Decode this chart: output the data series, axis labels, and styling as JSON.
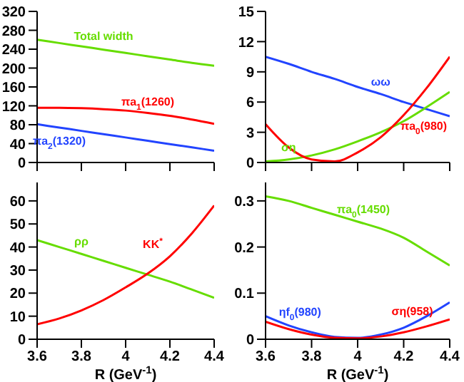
{
  "chart_data": [
    {
      "type": "line",
      "x": [
        3.6,
        3.7,
        3.8,
        3.9,
        4.0,
        4.1,
        4.2,
        4.3,
        4.4
      ],
      "xlim": [
        3.6,
        4.4
      ],
      "xticks": [
        3.6,
        3.8,
        4,
        4.2,
        4.4
      ],
      "ylim": [
        0,
        320
      ],
      "yticks": [
        0,
        40,
        80,
        120,
        160,
        200,
        240,
        280,
        320
      ],
      "tick_labels": "y",
      "grid": false,
      "legend": false,
      "series": [
        {
          "name": "Total width",
          "color": "#66dd00",
          "values": [
            260,
            253,
            246,
            239,
            232,
            225,
            218,
            211,
            205
          ]
        },
        {
          "name": "πa$_{1}$(1260)",
          "color": "#ff0000",
          "values": [
            116,
            116,
            115,
            113,
            110,
            105,
            99,
            91,
            82
          ]
        },
        {
          "name": "πa$_{2}$(1320)",
          "color": "#2244ff",
          "values": [
            81,
            74,
            67,
            60,
            53,
            46,
            39,
            32,
            25
          ]
        }
      ]
    },
    {
      "type": "line",
      "x": [
        3.6,
        3.7,
        3.8,
        3.9,
        4.0,
        4.1,
        4.2,
        4.3,
        4.4
      ],
      "xlim": [
        3.6,
        4.4
      ],
      "xticks": [
        3.6,
        3.8,
        4,
        4.2,
        4.4
      ],
      "ylim": [
        0,
        15
      ],
      "yticks": [
        0,
        3,
        6,
        9,
        12,
        15
      ],
      "tick_labels": "y",
      "grid": false,
      "legend": false,
      "series": [
        {
          "name": "ωω",
          "color": "#2244ff",
          "values": [
            10.5,
            9.8,
            9.0,
            8.3,
            7.5,
            6.8,
            6.0,
            5.3,
            4.6
          ]
        },
        {
          "name": "ση",
          "color": "#66dd00",
          "values": [
            0.1,
            0.3,
            0.7,
            1.3,
            2.1,
            3.0,
            4.1,
            5.5,
            7.0
          ]
        },
        {
          "name": "πa$_{0}$(980)",
          "color": "#ff0000",
          "values": [
            3.8,
            1.5,
            0.3,
            0.1,
            1.0,
            2.5,
            4.7,
            7.4,
            10.5
          ]
        }
      ]
    },
    {
      "type": "line",
      "x": [
        3.6,
        3.7,
        3.8,
        3.9,
        4.0,
        4.1,
        4.2,
        4.3,
        4.4
      ],
      "xlabel": "R (GeV$^{-1}$)",
      "xlim": [
        3.6,
        4.4
      ],
      "xticks": [
        3.6,
        3.8,
        4,
        4.2,
        4.4
      ],
      "ylim": [
        0,
        68
      ],
      "yticks": [
        0,
        10,
        20,
        30,
        40,
        50,
        60
      ],
      "grid": false,
      "legend": false,
      "series": [
        {
          "name": "ρρ",
          "color": "#66dd00",
          "values": [
            43,
            40,
            37,
            34,
            31,
            28,
            25,
            21.5,
            18
          ]
        },
        {
          "name": "KK$^{*}$",
          "color": "#ff0000",
          "values": [
            6.5,
            9,
            12.5,
            17,
            22.5,
            28.5,
            36,
            46,
            58
          ]
        }
      ]
    },
    {
      "type": "line",
      "x": [
        3.6,
        3.7,
        3.8,
        3.9,
        4.0,
        4.1,
        4.2,
        4.3,
        4.4
      ],
      "xlabel": "R (GeV$^{-1}$)",
      "xlim": [
        3.6,
        4.4
      ],
      "xticks": [
        3.6,
        3.8,
        4,
        4.2,
        4.4
      ],
      "ylim": [
        0,
        0.34
      ],
      "yticks": [
        0,
        0.1,
        0.2,
        0.3
      ],
      "grid": false,
      "legend": false,
      "series": [
        {
          "name": "πa$_{0}$(1450)",
          "color": "#66dd00",
          "values": [
            0.31,
            0.3,
            0.285,
            0.27,
            0.255,
            0.24,
            0.22,
            0.19,
            0.16
          ]
        },
        {
          "name": "ηf$_{0}$(980)",
          "color": "#2244ff",
          "values": [
            0.05,
            0.03,
            0.015,
            0.005,
            0.003,
            0.01,
            0.025,
            0.05,
            0.08
          ]
        },
        {
          "name": "ση(958)",
          "color": "#ff0000",
          "values": [
            0.038,
            0.022,
            0.01,
            0.003,
            0.002,
            0.006,
            0.015,
            0.028,
            0.043
          ]
        }
      ]
    }
  ]
}
